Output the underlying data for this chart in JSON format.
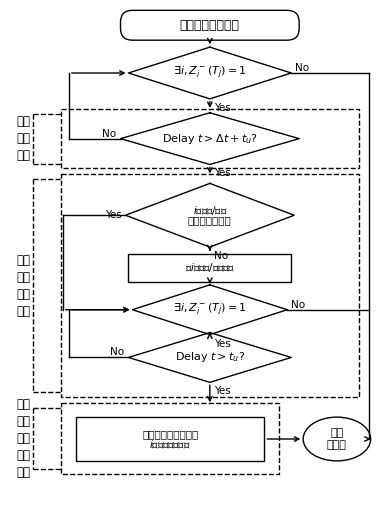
{
  "title_text": "母线故障识别模块",
  "diamond1_text": "$\\exists i, Z_i^-(T_j)=1$",
  "diamond2_text": "Delay $t>\\Delta t+t_u$?",
  "diamond3_line1": "$i$侧母联/母分",
  "diamond3_line2": "开关为分闸状态",
  "rect1_text": "跳$i$侧母联/母分开关",
  "diamond4_text": "$\\exists i, Z_i^-(T_j)=1$",
  "diamond5_text": "Delay $t>t_u$?",
  "rect2_line1": "判定为母线故障，跳",
  "rect2_line2": "$i$侧的变压器开关",
  "end_text": "结束\n本模块",
  "label1": "排除\n线路\n故障",
  "label2": "母线\n故障\n判断\n逻辑",
  "label3": "执行\n母线\n故障\n跳闸\n策略",
  "yes_text": "Yes",
  "no_text": "No"
}
